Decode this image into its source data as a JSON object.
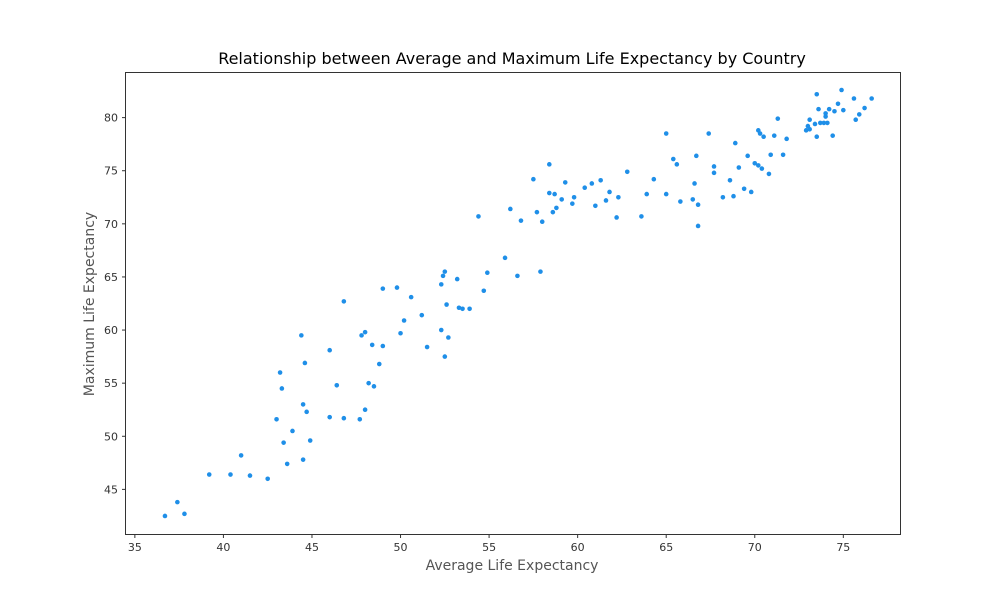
{
  "chart_data": {
    "type": "scatter",
    "title": "Relationship between Average and Maximum Life Expectancy by Country",
    "xlabel": "Average Life Expectancy",
    "ylabel": "Maximum Life Expectancy",
    "xlim": [
      34.5,
      78.2
    ],
    "ylim": [
      40.8,
      84.2
    ],
    "xticks": [
      35,
      40,
      45,
      50,
      55,
      60,
      65,
      70,
      75
    ],
    "yticks": [
      45,
      50,
      55,
      60,
      65,
      70,
      75,
      80
    ],
    "grid": false,
    "marker_color": "#1f8fe8",
    "points": [
      [
        36.7,
        42.5
      ],
      [
        37.4,
        43.8
      ],
      [
        37.8,
        42.7
      ],
      [
        39.2,
        46.4
      ],
      [
        40.4,
        46.4
      ],
      [
        41.0,
        48.2
      ],
      [
        41.5,
        46.3
      ],
      [
        42.5,
        46.0
      ],
      [
        43.0,
        51.6
      ],
      [
        43.2,
        56.0
      ],
      [
        43.3,
        54.5
      ],
      [
        43.4,
        49.4
      ],
      [
        43.6,
        47.4
      ],
      [
        43.9,
        50.5
      ],
      [
        44.4,
        59.5
      ],
      [
        44.5,
        53.0
      ],
      [
        44.5,
        47.8
      ],
      [
        44.6,
        56.9
      ],
      [
        44.7,
        52.3
      ],
      [
        44.9,
        49.6
      ],
      [
        46.0,
        58.1
      ],
      [
        46.0,
        51.8
      ],
      [
        46.4,
        54.8
      ],
      [
        46.8,
        62.7
      ],
      [
        46.8,
        51.7
      ],
      [
        47.7,
        51.6
      ],
      [
        47.8,
        59.5
      ],
      [
        48.0,
        52.5
      ],
      [
        48.0,
        59.8
      ],
      [
        48.2,
        55.0
      ],
      [
        48.4,
        58.6
      ],
      [
        48.5,
        54.7
      ],
      [
        48.8,
        56.8
      ],
      [
        49.0,
        63.9
      ],
      [
        49.0,
        58.5
      ],
      [
        49.8,
        64.0
      ],
      [
        50.0,
        59.7
      ],
      [
        50.2,
        60.9
      ],
      [
        50.6,
        63.1
      ],
      [
        51.2,
        61.4
      ],
      [
        51.5,
        58.4
      ],
      [
        52.3,
        64.3
      ],
      [
        52.3,
        60.0
      ],
      [
        52.4,
        65.1
      ],
      [
        52.5,
        65.5
      ],
      [
        52.5,
        57.5
      ],
      [
        52.6,
        62.4
      ],
      [
        52.7,
        59.3
      ],
      [
        53.2,
        64.8
      ],
      [
        53.3,
        62.1
      ],
      [
        53.5,
        62.0
      ],
      [
        53.9,
        62.0
      ],
      [
        54.4,
        70.7
      ],
      [
        54.7,
        63.7
      ],
      [
        54.9,
        65.4
      ],
      [
        55.9,
        66.8
      ],
      [
        56.2,
        71.4
      ],
      [
        56.6,
        65.1
      ],
      [
        56.8,
        70.3
      ],
      [
        57.5,
        74.2
      ],
      [
        57.7,
        71.1
      ],
      [
        57.9,
        65.5
      ],
      [
        58.0,
        70.2
      ],
      [
        58.4,
        75.6
      ],
      [
        58.4,
        72.9
      ],
      [
        58.6,
        71.1
      ],
      [
        58.7,
        72.8
      ],
      [
        58.8,
        71.5
      ],
      [
        59.1,
        72.3
      ],
      [
        59.3,
        73.9
      ],
      [
        59.7,
        71.9
      ],
      [
        59.8,
        72.5
      ],
      [
        60.4,
        73.4
      ],
      [
        60.8,
        73.8
      ],
      [
        61.0,
        71.7
      ],
      [
        61.3,
        74.1
      ],
      [
        61.6,
        72.2
      ],
      [
        61.8,
        73.0
      ],
      [
        62.2,
        70.6
      ],
      [
        62.3,
        72.5
      ],
      [
        62.8,
        74.9
      ],
      [
        63.6,
        70.7
      ],
      [
        63.9,
        72.8
      ],
      [
        64.3,
        74.2
      ],
      [
        65.0,
        78.5
      ],
      [
        65.0,
        72.8
      ],
      [
        65.4,
        76.1
      ],
      [
        65.6,
        75.6
      ],
      [
        65.8,
        72.1
      ],
      [
        66.5,
        72.3
      ],
      [
        66.6,
        73.8
      ],
      [
        66.7,
        76.4
      ],
      [
        66.8,
        71.8
      ],
      [
        66.8,
        69.8
      ],
      [
        67.4,
        78.5
      ],
      [
        67.7,
        75.4
      ],
      [
        67.7,
        74.8
      ],
      [
        68.2,
        72.5
      ],
      [
        68.6,
        74.1
      ],
      [
        68.8,
        72.6
      ],
      [
        68.9,
        77.6
      ],
      [
        69.1,
        75.3
      ],
      [
        69.4,
        73.3
      ],
      [
        69.6,
        76.4
      ],
      [
        69.8,
        73.0
      ],
      [
        70.0,
        75.7
      ],
      [
        70.2,
        78.8
      ],
      [
        70.2,
        75.5
      ],
      [
        70.3,
        78.5
      ],
      [
        70.4,
        75.2
      ],
      [
        70.5,
        78.2
      ],
      [
        70.8,
        74.7
      ],
      [
        70.9,
        76.5
      ],
      [
        71.1,
        78.3
      ],
      [
        71.3,
        79.9
      ],
      [
        71.6,
        76.5
      ],
      [
        71.8,
        78.0
      ],
      [
        72.9,
        78.8
      ],
      [
        73.0,
        79.2
      ],
      [
        73.1,
        79.8
      ],
      [
        73.1,
        78.9
      ],
      [
        73.4,
        79.4
      ],
      [
        73.5,
        82.2
      ],
      [
        73.5,
        78.2
      ],
      [
        73.6,
        80.8
      ],
      [
        73.7,
        79.5
      ],
      [
        73.9,
        79.5
      ],
      [
        74.0,
        80.4
      ],
      [
        74.0,
        80.1
      ],
      [
        74.1,
        79.5
      ],
      [
        74.2,
        80.8
      ],
      [
        74.4,
        78.3
      ],
      [
        74.5,
        80.6
      ],
      [
        74.7,
        81.3
      ],
      [
        74.9,
        82.6
      ],
      [
        75.0,
        80.7
      ],
      [
        75.6,
        81.8
      ],
      [
        75.7,
        79.8
      ],
      [
        75.9,
        80.3
      ],
      [
        76.2,
        80.9
      ],
      [
        76.6,
        81.8
      ]
    ]
  }
}
